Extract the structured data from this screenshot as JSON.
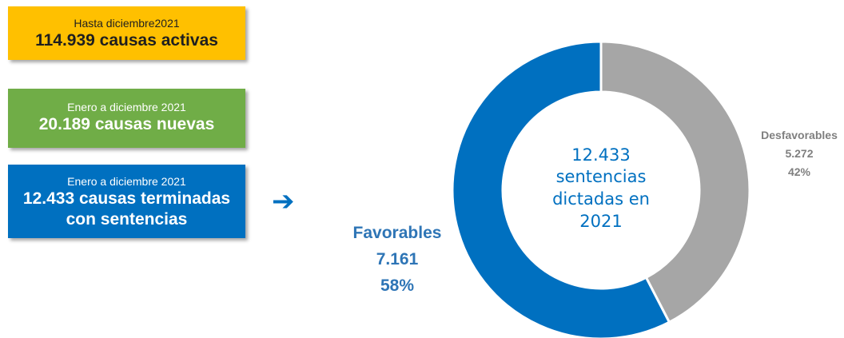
{
  "boxes": [
    {
      "subtitle": "Hasta diciembre2021",
      "value": "114.939 causas activas",
      "color": "#FFC000"
    },
    {
      "subtitle": "Enero a diciembre 2021",
      "value": "20.189 causas nuevas",
      "color": "#70AD47"
    },
    {
      "subtitle": "Enero a diciembre 2021",
      "value_line1": "12.433 causas terminadas",
      "value_line2": "con sentencias",
      "color": "#0070C0"
    }
  ],
  "arrow_icon": "arrow-right-icon",
  "chart_data": {
    "type": "pie",
    "center_text": [
      "12.433",
      "sentencias",
      "dictadas en",
      "2021"
    ],
    "slices": [
      {
        "label": "Favorables",
        "value": 7161,
        "value_label": "7.161",
        "percent": "58%",
        "color": "#0070C0"
      },
      {
        "label": "Desfavorables",
        "value": 5272,
        "value_label": "5.272",
        "percent": "42%",
        "color": "#A6A6A6"
      }
    ]
  }
}
